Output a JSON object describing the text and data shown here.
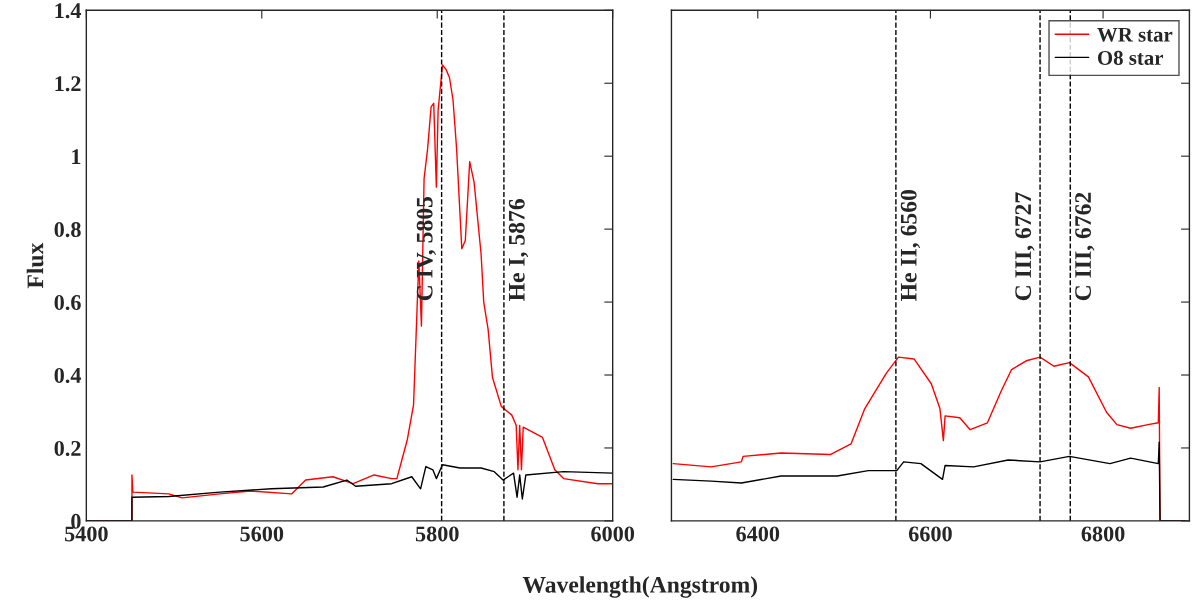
{
  "chart_data": [
    {
      "type": "line",
      "xlabel": "Wavelength(Angstrom)",
      "ylabel": "Flux",
      "xlim": [
        5400,
        6000
      ],
      "xticks": [
        5400,
        5600,
        5800,
        6000
      ],
      "ylim": [
        0,
        1.4
      ],
      "yticks": [
        0,
        0.2,
        0.4,
        0.6,
        0.8,
        1,
        1.2,
        1.4
      ],
      "grid": false,
      "legend": false,
      "line_style": "solid",
      "marker": "none",
      "series": [
        {
          "color": "#ff0000",
          "x": [
            5400,
            5452,
            5452,
            5453,
            5494,
            5509,
            5552,
            5587,
            5634,
            5650,
            5681,
            5704,
            5728,
            5748,
            5754,
            5766,
            5773,
            5777,
            5779,
            5782,
            5785,
            5789,
            5793,
            5796,
            5799,
            5801,
            5806,
            5810,
            5814,
            5818,
            5822,
            5828,
            5832,
            5837,
            5842,
            5850,
            5853,
            5858,
            5863,
            5873,
            5885,
            5890,
            5892,
            5894,
            5896,
            5898,
            5920,
            5934,
            5944,
            5983,
            6000
          ],
          "values": [
            0,
            0,
            0.126,
            0.079,
            0.074,
            0.063,
            0.074,
            0.082,
            0.074,
            0.112,
            0.121,
            0.102,
            0.126,
            0.116,
            0.116,
            0.224,
            0.318,
            0.581,
            0.713,
            0.534,
            0.938,
            1.02,
            1.135,
            1.145,
            0.915,
            1.126,
            1.25,
            1.238,
            1.215,
            1.154,
            1.023,
            0.746,
            0.769,
            0.985,
            0.929,
            0.731,
            0.6,
            0.525,
            0.393,
            0.314,
            0.29,
            0.262,
            0.14,
            0.262,
            0.14,
            0.257,
            0.229,
            0.14,
            0.116,
            0.102,
            0.102
          ]
        },
        {
          "color": "#000000",
          "x": [
            5400,
            5452,
            5452,
            5494,
            5552,
            5611,
            5670,
            5697,
            5707,
            5748,
            5771,
            5781,
            5787,
            5795,
            5799,
            5806,
            5826,
            5850,
            5865,
            5875,
            5887,
            5891,
            5894,
            5897,
            5901,
            5944,
            6000
          ],
          "values": [
            0,
            0,
            0.065,
            0.067,
            0.079,
            0.088,
            0.093,
            0.112,
            0.095,
            0.102,
            0.121,
            0.088,
            0.149,
            0.14,
            0.116,
            0.154,
            0.145,
            0.145,
            0.135,
            0.112,
            0.131,
            0.065,
            0.126,
            0.06,
            0.126,
            0.135,
            0.131
          ]
        }
      ],
      "ref_lines": [
        {
          "axis": "x",
          "value": 5805,
          "label": "C IV, 5805",
          "color": "#000000",
          "line_style": "dashed"
        },
        {
          "axis": "x",
          "value": 5876,
          "label": "He I, 5876",
          "color": "#000000",
          "line_style": "dashed"
        }
      ]
    },
    {
      "type": "line",
      "xlim": [
        6300,
        6900
      ],
      "xticks": [
        6400,
        6600,
        6800
      ],
      "ylim": [
        0,
        1.4
      ],
      "yticks": [
        0,
        0.2,
        0.4,
        0.6,
        0.8,
        1,
        1.2,
        1.4
      ],
      "tick_labels": "x",
      "grid": false,
      "legend": "top right",
      "line_style": "solid",
      "marker": "none",
      "series": [
        {
          "name": "WR star",
          "color": "#ff0000",
          "x": [
            6302,
            6346,
            6381,
            6383,
            6427,
            6484,
            6508,
            6524,
            6549,
            6563,
            6581,
            6601,
            6611,
            6615,
            6617,
            6634,
            6646,
            6666,
            6682,
            6694,
            6711,
            6727,
            6743,
            6761,
            6783,
            6804,
            6816,
            6832,
            6852,
            6864,
            6865,
            6866,
            6895
          ],
          "values": [
            0.157,
            0.148,
            0.162,
            0.177,
            0.186,
            0.182,
            0.211,
            0.308,
            0.405,
            0.449,
            0.444,
            0.376,
            0.308,
            0.22,
            0.288,
            0.283,
            0.25,
            0.269,
            0.356,
            0.415,
            0.439,
            0.449,
            0.424,
            0.434,
            0.395,
            0.298,
            0.264,
            0.254,
            0.264,
            0.269,
            0.366,
            0,
            0
          ]
        },
        {
          "name": "O8 star",
          "color": "#000000",
          "x": [
            6302,
            6346,
            6381,
            6427,
            6492,
            6528,
            6561,
            6569,
            6589,
            6614,
            6617,
            6650,
            6690,
            6727,
            6761,
            6808,
            6832,
            6864,
            6865,
            6866,
            6895
          ],
          "values": [
            0.114,
            0.109,
            0.104,
            0.123,
            0.123,
            0.138,
            0.138,
            0.162,
            0.157,
            0.114,
            0.152,
            0.148,
            0.167,
            0.162,
            0.177,
            0.157,
            0.172,
            0.157,
            0.216,
            0,
            0
          ]
        }
      ],
      "ref_lines": [
        {
          "axis": "x",
          "value": 6560,
          "label": "He II, 6560",
          "color": "#000000",
          "line_style": "dashed"
        },
        {
          "axis": "x",
          "value": 6727,
          "label": "C III, 6727",
          "color": "#000000",
          "line_style": "dashed"
        },
        {
          "axis": "x",
          "value": 6762,
          "label": "C III, 6762",
          "color": "#000000",
          "line_style": "dashed"
        }
      ]
    }
  ]
}
